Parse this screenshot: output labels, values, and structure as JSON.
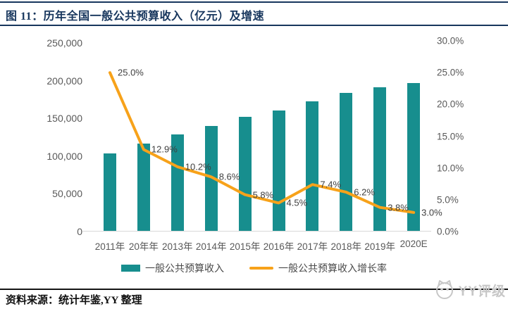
{
  "header": {
    "title": "图 11：历年全国一般公共预算收入（亿元）及增速"
  },
  "chart_data": {
    "type": "bar+line",
    "title": "历年全国一般公共预算收入（亿元）及增速",
    "categories": [
      "2011年",
      "20年年",
      "2013年",
      "2014年",
      "2015年",
      "2016年",
      "2017年",
      "2018年",
      "2019年",
      "2020E"
    ],
    "series": [
      {
        "name": "一般公共预算收入",
        "type": "bar",
        "axis": "left",
        "unit": "亿元",
        "color": "#178E8E",
        "values": [
          104000,
          117000,
          129000,
          140000,
          152000,
          160000,
          173000,
          184000,
          191000,
          197000
        ]
      },
      {
        "name": "一般公共预算收入增长率",
        "type": "line",
        "axis": "right",
        "unit": "%",
        "color": "#F7A21A",
        "values": [
          25.0,
          12.9,
          10.2,
          8.6,
          5.8,
          4.5,
          7.4,
          6.2,
          3.8,
          3.0
        ],
        "labels": [
          "25.0%",
          "12.9%",
          "10.2%",
          "8.6%",
          "5.8%",
          "4.5%",
          "7.4%",
          "6.2%",
          "3.8%",
          "3.0%"
        ]
      }
    ],
    "left_axis": {
      "min": 0,
      "max": 250000,
      "ticks": [
        "250,000",
        "200,000",
        "150,000",
        "100,000",
        "50,000",
        "0"
      ]
    },
    "right_axis": {
      "min": 0,
      "max": 30,
      "ticks": [
        "30.0%",
        "25.0%",
        "20.0%",
        "15.0%",
        "10.0%",
        "5.0%",
        "0.0%"
      ]
    },
    "layout": {
      "grid": false,
      "legend_position": "bottom",
      "background": "#ffffff"
    }
  },
  "footer": {
    "source": "资料来源：统计年鉴,YY 整理",
    "watermark": "YY评级"
  }
}
